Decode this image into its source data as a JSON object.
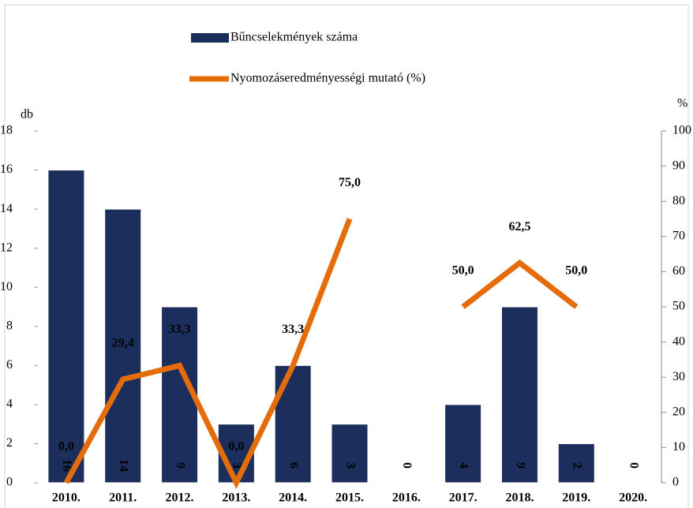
{
  "chart_data": {
    "type": "bar-line",
    "y_label": "db",
    "y2_label": "%",
    "categories": [
      "2010.",
      "2011.",
      "2012.",
      "2013.",
      "2014.",
      "2015.",
      "2016.",
      "2017.",
      "2018.",
      "2019.",
      "2020."
    ],
    "series": [
      {
        "name": "Bűncselekmények száma",
        "type": "bar",
        "color": "#1c2f5c",
        "values": [
          16,
          14,
          9,
          3,
          6,
          3,
          0,
          4,
          9,
          2,
          0
        ]
      },
      {
        "name": "Nyomozáseredményességi mutató (%)",
        "type": "line",
        "axis": "y2",
        "color": "#e46c0a",
        "values": [
          0.0,
          29.4,
          33.3,
          0.0,
          33.3,
          75.0,
          null,
          50.0,
          62.5,
          50.0,
          null
        ],
        "value_labels": [
          "0,0",
          "29,4",
          "33,3",
          "0,0",
          "33,3",
          "75,0",
          null,
          "50,0",
          "62,5",
          "50,0",
          null
        ]
      }
    ],
    "ylim": [
      0,
      18
    ],
    "yticks": [
      0,
      2,
      4,
      6,
      8,
      10,
      12,
      14,
      16,
      18
    ],
    "y2lim": [
      0,
      100
    ],
    "y2ticks": [
      0,
      10,
      20,
      30,
      40,
      50,
      60,
      70,
      80,
      90,
      100
    ]
  }
}
